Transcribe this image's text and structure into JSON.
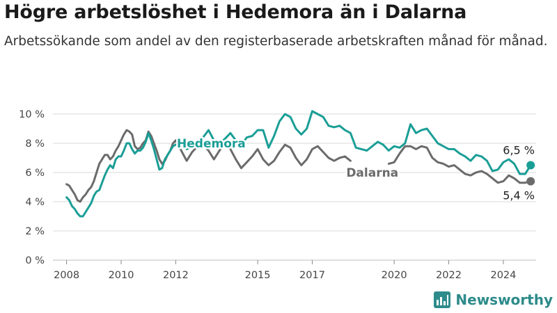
{
  "title": "Högre arbetslöshet i Hedemora än i Dalarna",
  "subtitle": "Arbetssökande som andel av den registerbaserade arbetskraften månad för månad.",
  "brand": "Newsworthy",
  "colors": {
    "hedemora": "#1a9e96",
    "dalarna": "#6b6b6b",
    "grid": "#d9d9d9",
    "axis": "#555555",
    "brand": "#2e8b8b"
  },
  "icons": {
    "logo": "bar-chart-logo-icon"
  },
  "chart_data": {
    "type": "line",
    "x_unit": "year",
    "xlim": [
      2007.5,
      2025.2
    ],
    "ylim": [
      0,
      10
    ],
    "y_ticks": [
      0,
      2,
      4,
      6,
      8,
      10
    ],
    "y_tick_labels": [
      "0 %",
      "2 %",
      "4 %",
      "6 %",
      "8 %",
      "10 %"
    ],
    "x_ticks": [
      2008,
      2010,
      2012,
      2015,
      2017,
      2020,
      2022,
      2024
    ],
    "x_tick_labels": [
      "2008",
      "2010",
      "2012",
      "2015",
      "2017",
      "2020",
      "2022",
      "2024"
    ],
    "grid": true,
    "series": [
      {
        "name": "Hedemora",
        "end_label": "6,5 %",
        "points": [
          [
            2008.0,
            4.3
          ],
          [
            2008.1,
            4.1
          ],
          [
            2008.2,
            3.7
          ],
          [
            2008.3,
            3.5
          ],
          [
            2008.4,
            3.2
          ],
          [
            2008.5,
            3.0
          ],
          [
            2008.6,
            3.0
          ],
          [
            2008.7,
            3.3
          ],
          [
            2008.8,
            3.6
          ],
          [
            2008.9,
            3.9
          ],
          [
            2009.0,
            4.4
          ],
          [
            2009.1,
            4.7
          ],
          [
            2009.2,
            4.8
          ],
          [
            2009.3,
            5.3
          ],
          [
            2009.4,
            5.8
          ],
          [
            2009.5,
            6.2
          ],
          [
            2009.6,
            6.5
          ],
          [
            2009.7,
            6.3
          ],
          [
            2009.8,
            6.9
          ],
          [
            2009.9,
            7.1
          ],
          [
            2010.0,
            7.1
          ],
          [
            2010.1,
            7.5
          ],
          [
            2010.2,
            8.0
          ],
          [
            2010.3,
            8.0
          ],
          [
            2010.4,
            7.6
          ],
          [
            2010.5,
            7.3
          ],
          [
            2010.6,
            7.5
          ],
          [
            2010.7,
            7.5
          ],
          [
            2010.8,
            7.7
          ],
          [
            2010.9,
            8.1
          ],
          [
            2011.0,
            8.7
          ],
          [
            2011.1,
            8.2
          ],
          [
            2011.2,
            7.6
          ],
          [
            2011.3,
            6.9
          ],
          [
            2011.4,
            6.2
          ],
          [
            2011.5,
            6.3
          ],
          [
            2011.6,
            6.9
          ],
          [
            2011.7,
            7.2
          ],
          [
            2011.8,
            7.5
          ],
          [
            2011.9,
            7.8
          ],
          [
            2012.0,
            7.9
          ],
          [
            2012.2,
            8.0
          ],
          [
            2012.4,
            7.6
          ],
          [
            2012.6,
            7.8
          ],
          [
            2012.8,
            8.1
          ],
          [
            2013.0,
            8.4
          ],
          [
            2013.2,
            8.9
          ],
          [
            2013.4,
            8.2
          ],
          [
            2013.6,
            8.0
          ],
          [
            2013.8,
            8.3
          ],
          [
            2014.0,
            8.7
          ],
          [
            2014.2,
            8.2
          ],
          [
            2014.4,
            7.9
          ],
          [
            2014.6,
            8.4
          ],
          [
            2014.8,
            8.5
          ],
          [
            2015.0,
            8.9
          ],
          [
            2015.2,
            8.9
          ],
          [
            2015.4,
            7.7
          ],
          [
            2015.6,
            8.5
          ],
          [
            2015.8,
            9.5
          ],
          [
            2016.0,
            10.0
          ],
          [
            2016.2,
            9.8
          ],
          [
            2016.4,
            9.0
          ],
          [
            2016.6,
            8.6
          ],
          [
            2016.8,
            9.0
          ],
          [
            2017.0,
            10.2
          ],
          [
            2017.2,
            10.0
          ],
          [
            2017.4,
            9.8
          ],
          [
            2017.6,
            9.2
          ],
          [
            2017.8,
            9.1
          ],
          [
            2018.0,
            9.2
          ],
          [
            2018.2,
            8.9
          ],
          [
            2018.4,
            8.7
          ],
          [
            2018.6,
            7.7
          ],
          [
            2018.8,
            7.6
          ],
          [
            2019.0,
            7.5
          ],
          [
            2019.2,
            7.8
          ],
          [
            2019.4,
            8.1
          ],
          [
            2019.6,
            7.9
          ],
          [
            2019.8,
            7.5
          ],
          [
            2020.0,
            7.8
          ],
          [
            2020.2,
            7.7
          ],
          [
            2020.4,
            8.0
          ],
          [
            2020.6,
            9.3
          ],
          [
            2020.8,
            8.7
          ],
          [
            2021.0,
            8.9
          ],
          [
            2021.2,
            9.0
          ],
          [
            2021.4,
            8.5
          ],
          [
            2021.6,
            8.0
          ],
          [
            2021.8,
            7.8
          ],
          [
            2022.0,
            7.6
          ],
          [
            2022.2,
            7.6
          ],
          [
            2022.4,
            7.3
          ],
          [
            2022.6,
            7.1
          ],
          [
            2022.8,
            6.8
          ],
          [
            2023.0,
            7.2
          ],
          [
            2023.2,
            7.1
          ],
          [
            2023.4,
            6.8
          ],
          [
            2023.6,
            6.1
          ],
          [
            2023.8,
            6.2
          ],
          [
            2024.0,
            6.7
          ],
          [
            2024.2,
            6.9
          ],
          [
            2024.4,
            6.6
          ],
          [
            2024.6,
            5.9
          ],
          [
            2024.8,
            5.9
          ],
          [
            2025.0,
            6.5
          ]
        ]
      },
      {
        "name": "Dalarna",
        "end_label": "5,4 %",
        "points": [
          [
            2008.0,
            5.2
          ],
          [
            2008.1,
            5.1
          ],
          [
            2008.2,
            4.8
          ],
          [
            2008.3,
            4.5
          ],
          [
            2008.4,
            4.1
          ],
          [
            2008.5,
            4.0
          ],
          [
            2008.6,
            4.3
          ],
          [
            2008.7,
            4.5
          ],
          [
            2008.8,
            4.8
          ],
          [
            2008.9,
            5.0
          ],
          [
            2009.0,
            5.4
          ],
          [
            2009.1,
            6.0
          ],
          [
            2009.2,
            6.6
          ],
          [
            2009.3,
            6.9
          ],
          [
            2009.4,
            7.2
          ],
          [
            2009.5,
            7.2
          ],
          [
            2009.6,
            6.9
          ],
          [
            2009.7,
            7.1
          ],
          [
            2009.8,
            7.5
          ],
          [
            2009.9,
            7.8
          ],
          [
            2010.0,
            8.2
          ],
          [
            2010.1,
            8.6
          ],
          [
            2010.2,
            8.9
          ],
          [
            2010.3,
            8.8
          ],
          [
            2010.4,
            8.6
          ],
          [
            2010.5,
            7.8
          ],
          [
            2010.6,
            7.6
          ],
          [
            2010.7,
            7.7
          ],
          [
            2010.8,
            8.0
          ],
          [
            2010.9,
            8.2
          ],
          [
            2011.0,
            8.8
          ],
          [
            2011.1,
            8.5
          ],
          [
            2011.2,
            8.0
          ],
          [
            2011.3,
            7.5
          ],
          [
            2011.4,
            6.9
          ],
          [
            2011.5,
            6.6
          ],
          [
            2011.6,
            6.8
          ],
          [
            2011.7,
            7.2
          ],
          [
            2011.8,
            7.5
          ],
          [
            2011.9,
            8.0
          ],
          [
            2012.0,
            8.2
          ],
          [
            2012.2,
            7.5
          ],
          [
            2012.4,
            6.8
          ],
          [
            2012.6,
            7.4
          ],
          [
            2012.8,
            7.8
          ],
          [
            2013.0,
            7.9
          ],
          [
            2013.2,
            7.5
          ],
          [
            2013.4,
            6.9
          ],
          [
            2013.6,
            7.5
          ],
          [
            2013.8,
            8.0
          ],
          [
            2014.0,
            7.6
          ],
          [
            2014.2,
            6.9
          ],
          [
            2014.4,
            6.3
          ],
          [
            2014.6,
            6.7
          ],
          [
            2014.8,
            7.1
          ],
          [
            2015.0,
            7.6
          ],
          [
            2015.2,
            6.9
          ],
          [
            2015.4,
            6.5
          ],
          [
            2015.6,
            6.8
          ],
          [
            2015.8,
            7.4
          ],
          [
            2016.0,
            7.9
          ],
          [
            2016.2,
            7.7
          ],
          [
            2016.4,
            7.0
          ],
          [
            2016.6,
            6.5
          ],
          [
            2016.8,
            6.9
          ],
          [
            2017.0,
            7.6
          ],
          [
            2017.2,
            7.8
          ],
          [
            2017.4,
            7.4
          ],
          [
            2017.6,
            7.0
          ],
          [
            2017.8,
            6.8
          ],
          [
            2018.0,
            7.0
          ],
          [
            2018.2,
            7.1
          ],
          [
            2018.4,
            6.8
          ]
        ],
        "points_b": [
          [
            2019.8,
            6.6
          ],
          [
            2020.0,
            6.7
          ],
          [
            2020.2,
            7.3
          ],
          [
            2020.4,
            7.8
          ],
          [
            2020.6,
            7.8
          ],
          [
            2020.8,
            7.6
          ],
          [
            2021.0,
            7.8
          ],
          [
            2021.2,
            7.7
          ],
          [
            2021.4,
            7.0
          ],
          [
            2021.6,
            6.7
          ],
          [
            2021.8,
            6.6
          ],
          [
            2022.0,
            6.4
          ],
          [
            2022.2,
            6.5
          ],
          [
            2022.4,
            6.2
          ],
          [
            2022.6,
            5.9
          ],
          [
            2022.8,
            5.8
          ],
          [
            2023.0,
            6.0
          ],
          [
            2023.2,
            6.1
          ],
          [
            2023.4,
            5.9
          ],
          [
            2023.6,
            5.6
          ],
          [
            2023.8,
            5.3
          ],
          [
            2024.0,
            5.4
          ],
          [
            2024.2,
            5.8
          ],
          [
            2024.4,
            5.6
          ],
          [
            2024.6,
            5.3
          ],
          [
            2024.8,
            5.3
          ],
          [
            2025.0,
            5.4
          ]
        ]
      }
    ],
    "annotations": [
      {
        "text": "Hedemora",
        "series": "Hedemora",
        "at": [
          2013.3,
          8.0
        ]
      },
      {
        "text": "Dalarna",
        "series": "Dalarna",
        "at": [
          2019.2,
          6.0
        ]
      }
    ]
  }
}
